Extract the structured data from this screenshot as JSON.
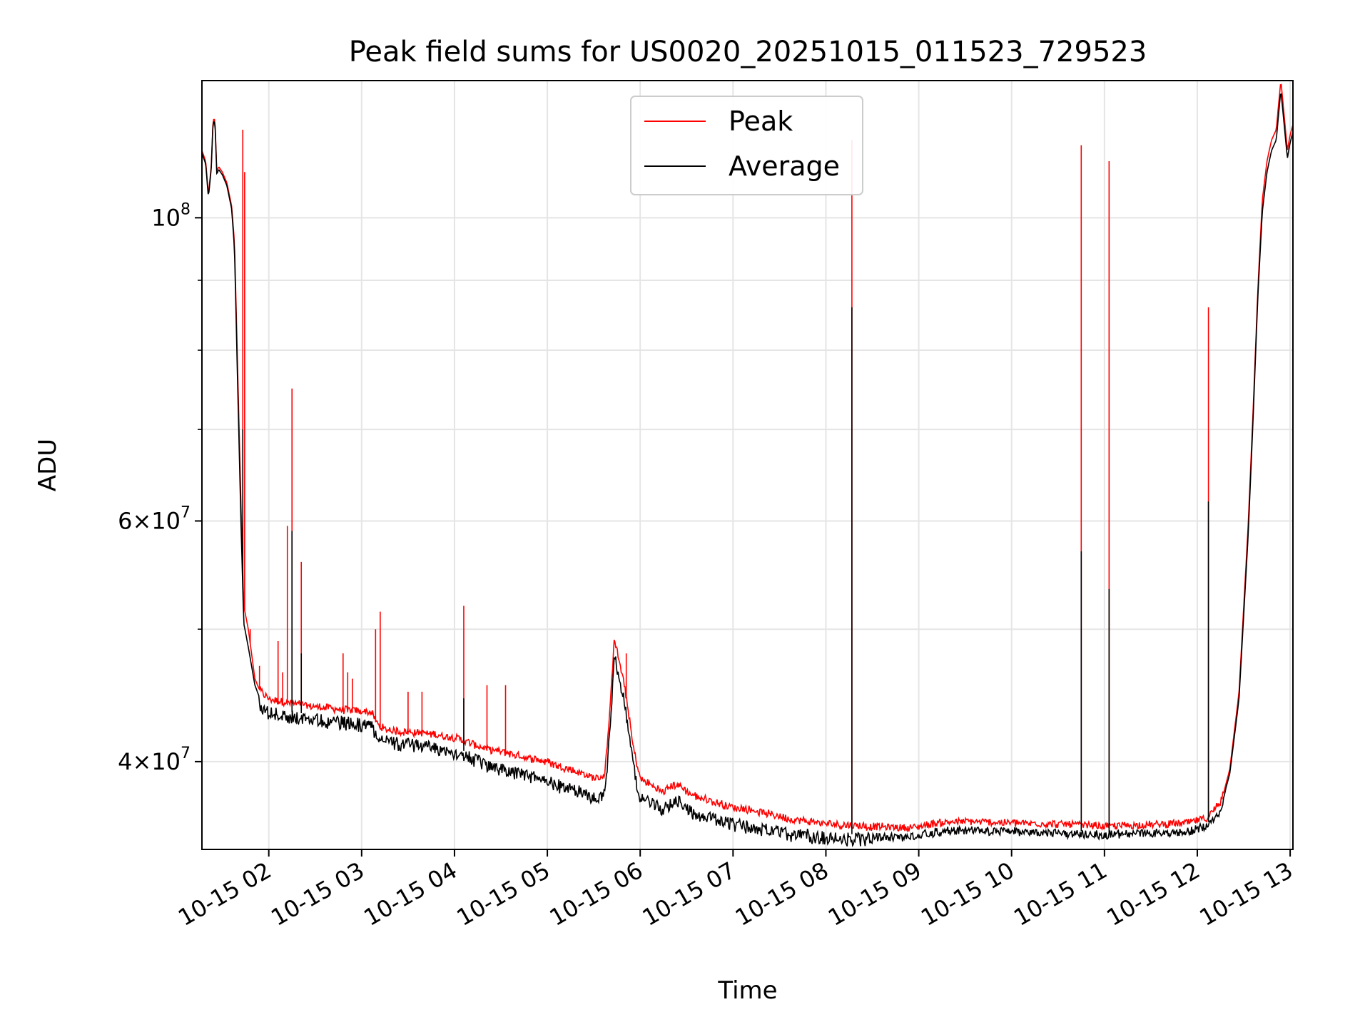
{
  "chart_data": {
    "type": "line",
    "title": "Peak field sums for US0020_20251015_011523_729523",
    "xlabel": "Time",
    "ylabel": "ADU",
    "yscale": "log",
    "xlim_hours": [
      1.28,
      13.03
    ],
    "ylim": [
      34500000,
      126000000
    ],
    "grid": true,
    "legend_location": "upper center",
    "x_ticks": [
      {
        "value": 2,
        "label": "10-15 02"
      },
      {
        "value": 3,
        "label": "10-15 03"
      },
      {
        "value": 4,
        "label": "10-15 04"
      },
      {
        "value": 5,
        "label": "10-15 05"
      },
      {
        "value": 6,
        "label": "10-15 06"
      },
      {
        "value": 7,
        "label": "10-15 07"
      },
      {
        "value": 8,
        "label": "10-15 08"
      },
      {
        "value": 9,
        "label": "10-15 09"
      },
      {
        "value": 10,
        "label": "10-15 10"
      },
      {
        "value": 11,
        "label": "10-15 11"
      },
      {
        "value": 12,
        "label": "10-15 12"
      },
      {
        "value": 13,
        "label": "10-15 13"
      }
    ],
    "y_major_ticks": [
      {
        "value": 40000000,
        "mantissa": "4",
        "exponent": "7"
      },
      {
        "value": 60000000,
        "mantissa": "6",
        "exponent": "7"
      },
      {
        "value": 100000000,
        "mantissa": "10",
        "exponent": "8"
      }
    ],
    "y_minor_ticks": [
      50000000,
      70000000,
      80000000,
      90000000
    ],
    "series": [
      {
        "name": "Peak",
        "color": "#ff0000",
        "points": [
          [
            1.28,
            112000000
          ],
          [
            1.32,
            110000000
          ],
          [
            1.35,
            104000000
          ],
          [
            1.38,
            109000000
          ],
          [
            1.4,
            118000000
          ],
          [
            1.42,
            118000000
          ],
          [
            1.44,
            108000000
          ],
          [
            1.46,
            109000000
          ],
          [
            1.5,
            108000000
          ],
          [
            1.55,
            106000000
          ],
          [
            1.6,
            102000000
          ],
          [
            1.63,
            96000000
          ],
          [
            1.66,
            80000000
          ],
          [
            1.7,
            62000000
          ],
          [
            1.73,
            52000000
          ],
          [
            1.78,
            50000000
          ],
          [
            1.85,
            46000000
          ],
          [
            1.92,
            44800000
          ],
          [
            2.0,
            44300000
          ],
          [
            2.2,
            44000000
          ],
          [
            2.5,
            43700000
          ],
          [
            2.8,
            43500000
          ],
          [
            3.1,
            43300000
          ],
          [
            3.2,
            42200000
          ],
          [
            3.4,
            41900000
          ],
          [
            3.7,
            41800000
          ],
          [
            4.0,
            41500000
          ],
          [
            4.3,
            40800000
          ],
          [
            4.6,
            40400000
          ],
          [
            5.0,
            39800000
          ],
          [
            5.3,
            39200000
          ],
          [
            5.55,
            38700000
          ],
          [
            5.62,
            39000000
          ],
          [
            5.68,
            44000000
          ],
          [
            5.72,
            49200000
          ],
          [
            5.78,
            47000000
          ],
          [
            5.85,
            44500000
          ],
          [
            5.92,
            41000000
          ],
          [
            6.0,
            38700000
          ],
          [
            6.15,
            38200000
          ],
          [
            6.25,
            37800000
          ],
          [
            6.35,
            38300000
          ],
          [
            6.42,
            38300000
          ],
          [
            6.55,
            37700000
          ],
          [
            6.8,
            37200000
          ],
          [
            7.0,
            36900000
          ],
          [
            7.3,
            36600000
          ],
          [
            7.6,
            36200000
          ],
          [
            8.0,
            35900000
          ],
          [
            8.2,
            35800000
          ],
          [
            8.5,
            35700000
          ],
          [
            8.9,
            35600000
          ],
          [
            9.2,
            35900000
          ],
          [
            9.5,
            36000000
          ],
          [
            10.0,
            35900000
          ],
          [
            10.7,
            35800000
          ],
          [
            11.0,
            35700000
          ],
          [
            11.5,
            35800000
          ],
          [
            11.9,
            35900000
          ],
          [
            12.1,
            36200000
          ],
          [
            12.25,
            37200000
          ],
          [
            12.35,
            39500000
          ],
          [
            12.45,
            45000000
          ],
          [
            12.55,
            60000000
          ],
          [
            12.6,
            72000000
          ],
          [
            12.65,
            88000000
          ],
          [
            12.7,
            103000000
          ],
          [
            12.75,
            110000000
          ],
          [
            12.8,
            114000000
          ],
          [
            12.85,
            116000000
          ],
          [
            12.9,
            126000000
          ],
          [
            12.92,
            122000000
          ],
          [
            12.97,
            112000000
          ],
          [
            13.0,
            115000000
          ],
          [
            13.03,
            117000000
          ]
        ]
      },
      {
        "name": "Average",
        "color": "#000000",
        "points": [
          [
            1.28,
            111500000
          ],
          [
            1.32,
            109500000
          ],
          [
            1.35,
            103500000
          ],
          [
            1.38,
            108500000
          ],
          [
            1.4,
            117500000
          ],
          [
            1.42,
            117500000
          ],
          [
            1.44,
            107500000
          ],
          [
            1.46,
            108500000
          ],
          [
            1.5,
            107500000
          ],
          [
            1.55,
            105500000
          ],
          [
            1.6,
            101500000
          ],
          [
            1.63,
            95000000
          ],
          [
            1.66,
            78000000
          ],
          [
            1.7,
            60000000
          ],
          [
            1.73,
            50500000
          ],
          [
            1.78,
            48500000
          ],
          [
            1.85,
            45500000
          ],
          [
            1.92,
            44200000
          ],
          [
            2.0,
            43800000
          ],
          [
            2.2,
            43500000
          ],
          [
            2.5,
            43300000
          ],
          [
            2.8,
            43100000
          ],
          [
            3.1,
            42900000
          ],
          [
            3.2,
            41900000
          ],
          [
            3.4,
            41600000
          ],
          [
            3.7,
            41400000
          ],
          [
            4.0,
            41000000
          ],
          [
            4.3,
            40200000
          ],
          [
            4.6,
            39700000
          ],
          [
            5.0,
            39000000
          ],
          [
            5.3,
            38400000
          ],
          [
            5.55,
            37900000
          ],
          [
            5.62,
            38200000
          ],
          [
            5.68,
            43000000
          ],
          [
            5.72,
            48500000
          ],
          [
            5.78,
            46300000
          ],
          [
            5.85,
            43800000
          ],
          [
            5.92,
            40200000
          ],
          [
            6.0,
            38000000
          ],
          [
            6.15,
            37500000
          ],
          [
            6.25,
            37200000
          ],
          [
            6.35,
            37800000
          ],
          [
            6.42,
            37700000
          ],
          [
            6.55,
            37100000
          ],
          [
            6.8,
            36600000
          ],
          [
            7.0,
            36300000
          ],
          [
            7.3,
            36000000
          ],
          [
            7.6,
            35700000
          ],
          [
            8.0,
            35500000
          ],
          [
            8.2,
            35400000
          ],
          [
            8.5,
            35400000
          ],
          [
            8.9,
            35400000
          ],
          [
            9.2,
            35700000
          ],
          [
            9.5,
            35800000
          ],
          [
            10.0,
            35700000
          ],
          [
            10.7,
            35600000
          ],
          [
            11.0,
            35500000
          ],
          [
            11.5,
            35600000
          ],
          [
            11.9,
            35700000
          ],
          [
            12.1,
            36000000
          ],
          [
            12.25,
            37000000
          ],
          [
            12.35,
            39200000
          ],
          [
            12.45,
            44500000
          ],
          [
            12.55,
            59000000
          ],
          [
            12.6,
            71000000
          ],
          [
            12.65,
            87000000
          ],
          [
            12.7,
            101000000
          ],
          [
            12.75,
            108000000
          ],
          [
            12.8,
            112000000
          ],
          [
            12.85,
            114000000
          ],
          [
            12.9,
            124000000
          ],
          [
            12.92,
            120000000
          ],
          [
            12.97,
            110500000
          ],
          [
            13.0,
            113500000
          ],
          [
            13.03,
            115500000
          ]
        ]
      }
    ],
    "peak_spikes": [
      [
        1.72,
        116000000
      ],
      [
        1.74,
        108000000
      ],
      [
        1.8,
        50000000
      ],
      [
        1.9,
        47000000
      ],
      [
        2.1,
        49000000
      ],
      [
        2.15,
        46500000
      ],
      [
        2.2,
        59500000
      ],
      [
        2.25,
        75000000
      ],
      [
        2.35,
        56000000
      ],
      [
        2.8,
        48000000
      ],
      [
        2.85,
        46500000
      ],
      [
        2.9,
        46000000
      ],
      [
        3.15,
        50000000
      ],
      [
        3.2,
        51500000
      ],
      [
        3.5,
        45000000
      ],
      [
        3.65,
        45000000
      ],
      [
        4.1,
        52000000
      ],
      [
        4.35,
        45500000
      ],
      [
        4.55,
        45500000
      ],
      [
        5.85,
        48000000
      ],
      [
        8.28,
        114000000
      ],
      [
        10.75,
        113000000
      ],
      [
        11.05,
        110000000
      ],
      [
        12.12,
        86000000
      ]
    ],
    "average_spikes": [
      [
        1.72,
        70000000
      ],
      [
        2.25,
        59000000
      ],
      [
        2.35,
        48000000
      ],
      [
        4.1,
        44500000
      ],
      [
        8.28,
        86000000
      ],
      [
        10.75,
        57000000
      ],
      [
        11.05,
        53500000
      ],
      [
        12.12,
        62000000
      ]
    ],
    "legend": [
      {
        "label": "Peak",
        "color": "#ff0000"
      },
      {
        "label": "Average",
        "color": "#000000"
      }
    ]
  }
}
